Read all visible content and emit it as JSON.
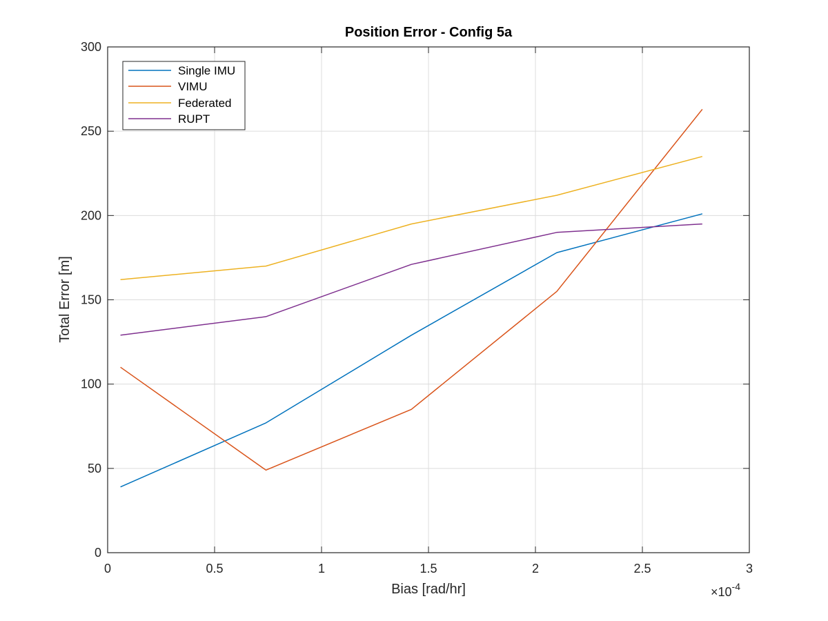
{
  "chart_data": {
    "type": "line",
    "title": "Position Error - Config 5a",
    "xlabel": "Bias [rad/hr]",
    "ylabel": "Total Error [m]",
    "x_exponent_base": "×10",
    "x_exponent_power": "-4",
    "xlim": [
      0,
      3
    ],
    "ylim": [
      0,
      300
    ],
    "xticks": [
      0,
      0.5,
      1,
      1.5,
      2,
      2.5,
      3
    ],
    "yticks": [
      0,
      50,
      100,
      150,
      200,
      250,
      300
    ],
    "xtick_labels": [
      "0",
      "0.5",
      "1",
      "1.5",
      "2",
      "2.5",
      "3"
    ],
    "ytick_labels": [
      "0",
      "50",
      "100",
      "150",
      "200",
      "250",
      "300"
    ],
    "grid": true,
    "legend_position": "top-left",
    "x": [
      0.06,
      0.74,
      1.42,
      2.1,
      2.78
    ],
    "series": [
      {
        "name": "Single IMU",
        "color": "#0072BD",
        "values": [
          39,
          77,
          129,
          178,
          201
        ]
      },
      {
        "name": "VIMU",
        "color": "#D95319",
        "values": [
          110,
          49,
          85,
          155,
          263
        ]
      },
      {
        "name": "Federated",
        "color": "#EDB120",
        "values": [
          162,
          170,
          195,
          212,
          235
        ]
      },
      {
        "name": "RUPT",
        "color": "#7E2F8E",
        "values": [
          129,
          140,
          171,
          190,
          195
        ]
      }
    ]
  }
}
